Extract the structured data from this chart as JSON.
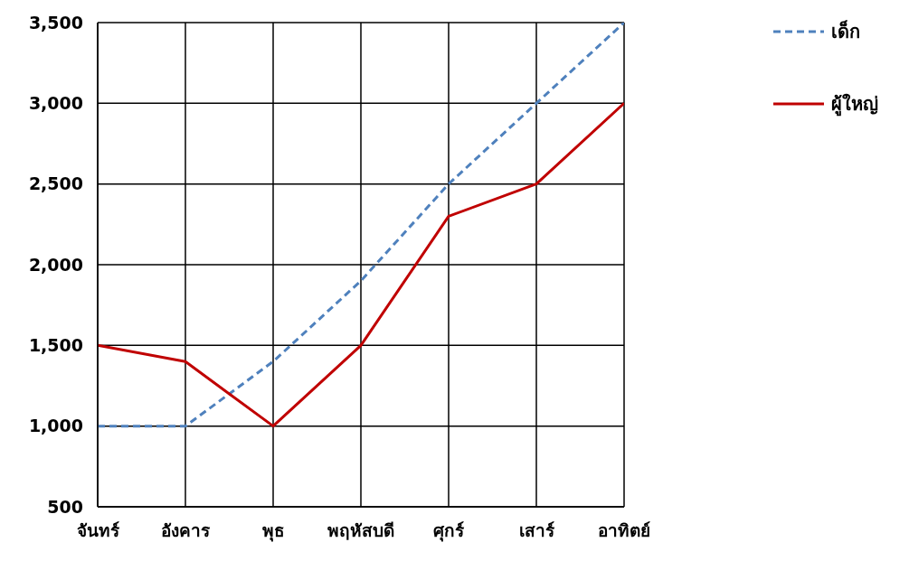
{
  "chart_data": {
    "type": "line",
    "categories": [
      "จันทร์",
      "อังคาร",
      "พุธ",
      "พฤหัสบดี",
      "ศุกร์",
      "เสาร์",
      "อาทิตย์"
    ],
    "series": [
      {
        "name": "เด็ก",
        "color": "#4f81bd",
        "line_style": "dashed",
        "values": [
          1000,
          1000,
          1400,
          1900,
          2500,
          3000,
          3500
        ]
      },
      {
        "name": "ผู้ใหญ่",
        "color": "#c00000",
        "line_style": "solid",
        "values": [
          1500,
          1400,
          1000,
          1500,
          2300,
          2500,
          3000
        ]
      }
    ],
    "ylim": [
      500,
      3500
    ],
    "yticks": [
      500,
      {
        "value": 1000,
        "label": "1,000"
      },
      {
        "value": 1500,
        "label": "1,500"
      },
      {
        "value": 2000,
        "label": "2,000"
      },
      {
        "value": 2500,
        "label": "2,500"
      },
      {
        "value": 3000,
        "label": "3,000"
      },
      {
        "value": 3500,
        "label": "3,500"
      }
    ],
    "grid": true,
    "legend": "top right",
    "marker": "none"
  }
}
